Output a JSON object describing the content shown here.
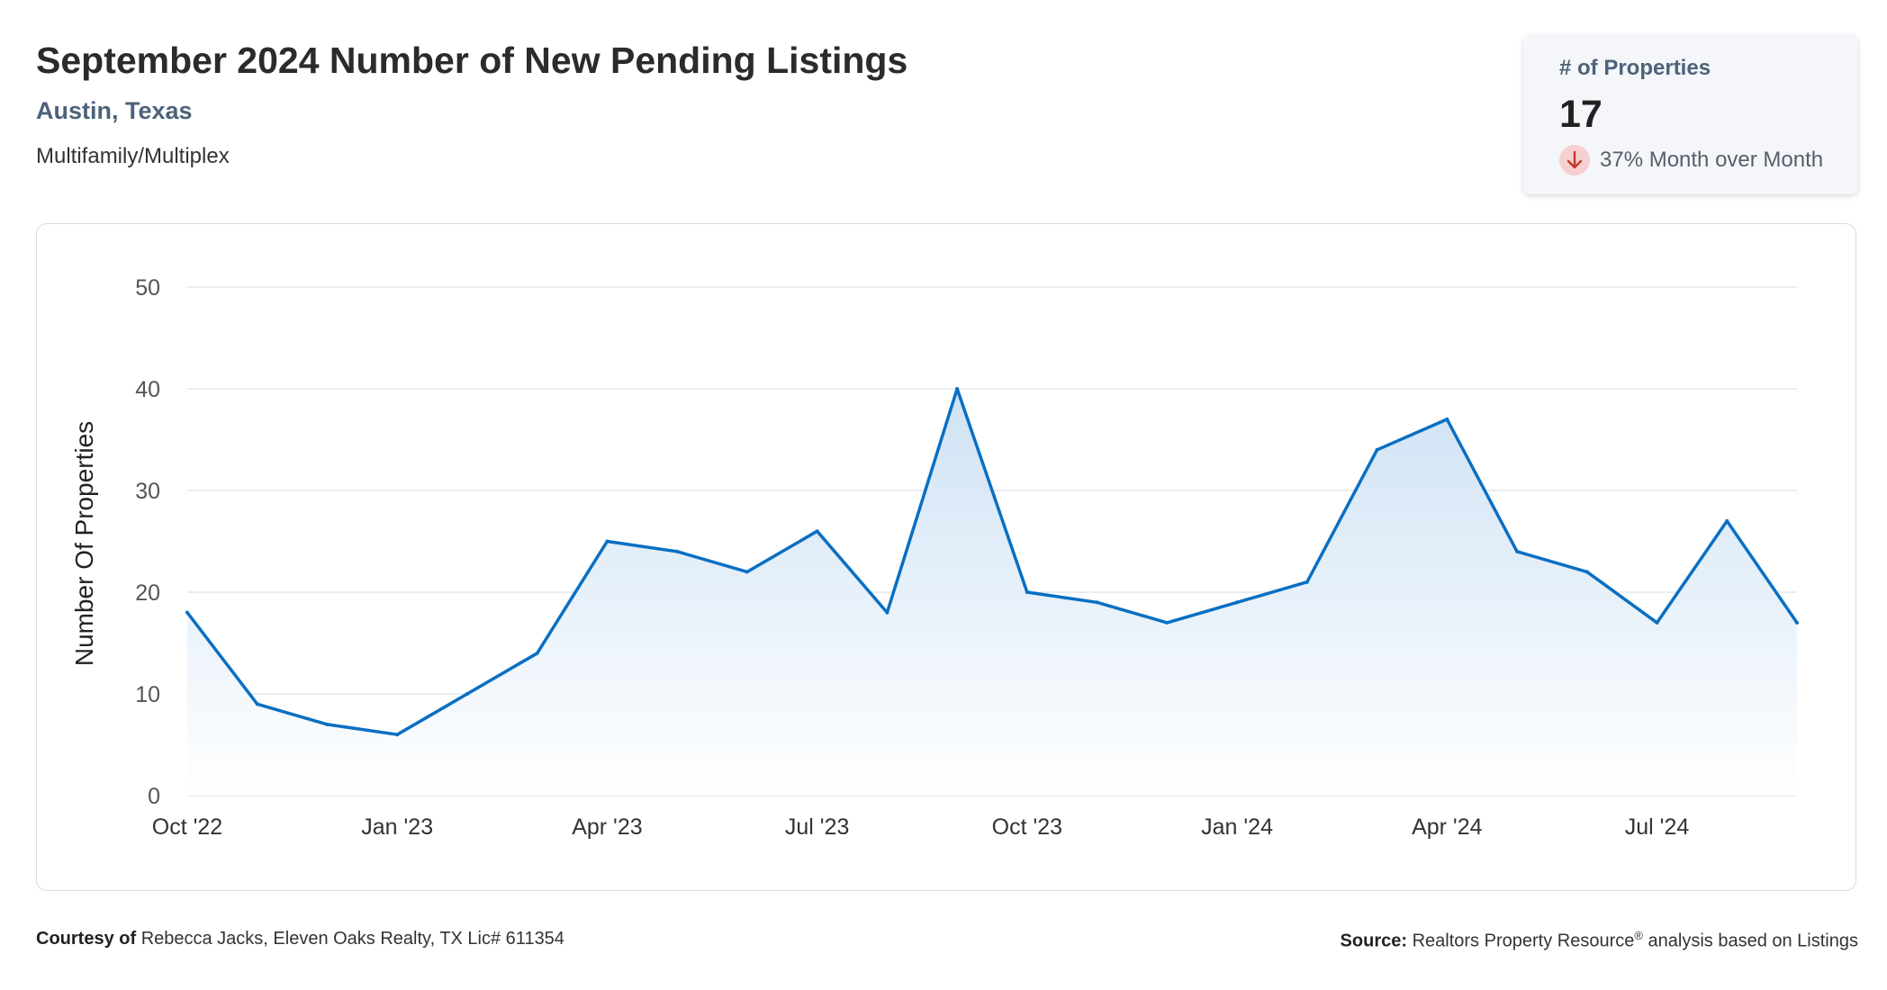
{
  "header": {
    "title": "September 2024 Number of New Pending Listings",
    "location": "Austin, Texas",
    "property_type": "Multifamily/Multiplex"
  },
  "stat_card": {
    "label": "# of Properties",
    "value": "17",
    "change_text": "37% Month over Month",
    "direction_icon": "arrow-down-icon",
    "direction": "down"
  },
  "chart_data": {
    "type": "area",
    "title": "",
    "xlabel": "",
    "ylabel": "Number Of Properties",
    "ylim": [
      0,
      50
    ],
    "yticks": [
      0,
      10,
      20,
      30,
      40,
      50
    ],
    "x": [
      "Oct '22",
      "Nov '22",
      "Dec '22",
      "Jan '23",
      "Feb '23",
      "Mar '23",
      "Apr '23",
      "May '23",
      "Jun '23",
      "Jul '23",
      "Aug '23",
      "Sep '23",
      "Oct '23",
      "Nov '23",
      "Dec '23",
      "Jan '24",
      "Feb '24",
      "Mar '24",
      "Apr '24",
      "May '24",
      "Jun '24",
      "Jul '24",
      "Aug '24",
      "Sep '24"
    ],
    "xtick_labels": [
      "Oct '22",
      "Jan '23",
      "Apr '23",
      "Jul '23",
      "Oct '23",
      "Jan '24",
      "Apr '24",
      "Jul '24"
    ],
    "series": [
      {
        "values": [
          18,
          9,
          7,
          6,
          10,
          14,
          25,
          24,
          22,
          26,
          18,
          40,
          20,
          19,
          17,
          19,
          21,
          34,
          37,
          24,
          22,
          17,
          27,
          17
        ]
      }
    ],
    "grid": true,
    "legend": "none",
    "line_color": "#0a6fc2",
    "fill_color_top": "#cfe2f4",
    "fill_color_bottom": "#ffffff"
  },
  "footer": {
    "courtesy_label": "Courtesy of",
    "courtesy_text": "Rebecca Jacks, Eleven Oaks Realty, TX Lic# 611354",
    "source_label": "Source:",
    "source_text_1": "Realtors Property Resource",
    "source_mark": "®",
    "source_text_2": "analysis based on Listings"
  }
}
